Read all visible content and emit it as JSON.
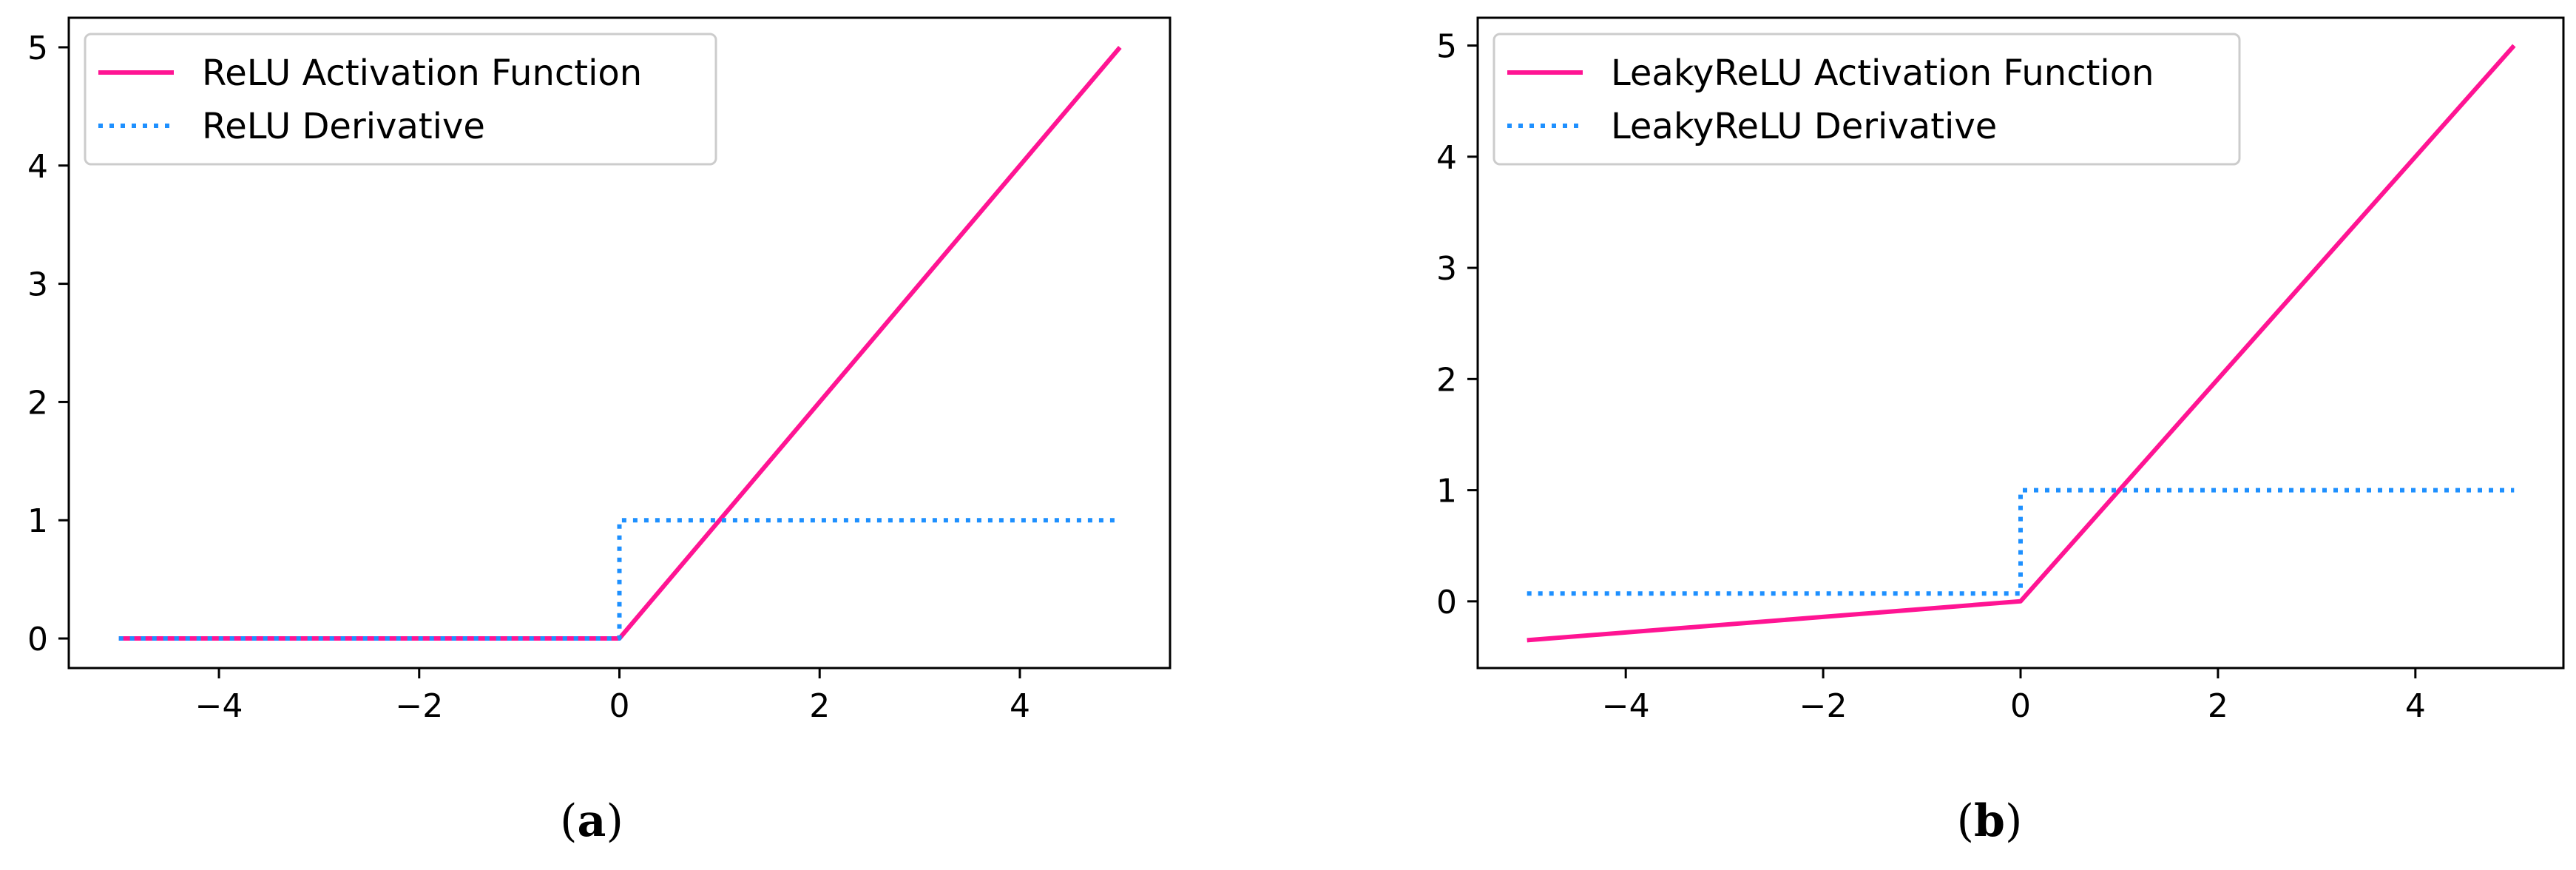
{
  "chart_data": [
    {
      "type": "line",
      "caption": {
        "open": "(",
        "letter": "a",
        "close": ")"
      },
      "xlim": [
        -5.5,
        5.5
      ],
      "ylim": [
        -0.25,
        5.25
      ],
      "xticks": [
        -4,
        -2,
        0,
        2,
        4
      ],
      "xtick_labels": [
        "−4",
        "−2",
        "0",
        "2",
        "4"
      ],
      "yticks": [
        0,
        1,
        2,
        3,
        4,
        5
      ],
      "ytick_labels": [
        "0",
        "1",
        "2",
        "3",
        "4",
        "5"
      ],
      "grid": false,
      "legend_position": "top-left",
      "series": [
        {
          "name": "ReLU Activation Function",
          "color": "#ff1493",
          "style": "solid",
          "x": [
            -5,
            0,
            5
          ],
          "y": [
            0,
            0,
            5
          ]
        },
        {
          "name": "ReLU Derivative",
          "color": "#1e90ff",
          "style": "dotted",
          "x": [
            -5,
            0,
            0,
            5
          ],
          "y": [
            0,
            0,
            1,
            1
          ]
        }
      ]
    },
    {
      "type": "line",
      "caption": {
        "open": "(",
        "letter": "b",
        "close": ")"
      },
      "xlim": [
        -5.5,
        5.5
      ],
      "ylim": [
        -0.6,
        5.25
      ],
      "xticks": [
        -4,
        -2,
        0,
        2,
        4
      ],
      "xtick_labels": [
        "−4",
        "−2",
        "0",
        "2",
        "4"
      ],
      "yticks": [
        0,
        1,
        2,
        3,
        4,
        5
      ],
      "ytick_labels": [
        "0",
        "1",
        "2",
        "3",
        "4",
        "5"
      ],
      "grid": false,
      "legend_position": "top-left",
      "series": [
        {
          "name": "LeakyReLU Activation Function",
          "color": "#ff1493",
          "style": "solid",
          "x": [
            -5,
            0,
            5
          ],
          "y": [
            -0.35,
            0,
            5
          ]
        },
        {
          "name": "LeakyReLU Derivative",
          "color": "#1e90ff",
          "style": "dotted",
          "x": [
            -5,
            0,
            0,
            5
          ],
          "y": [
            0.07,
            0.07,
            1,
            1
          ]
        }
      ]
    }
  ]
}
